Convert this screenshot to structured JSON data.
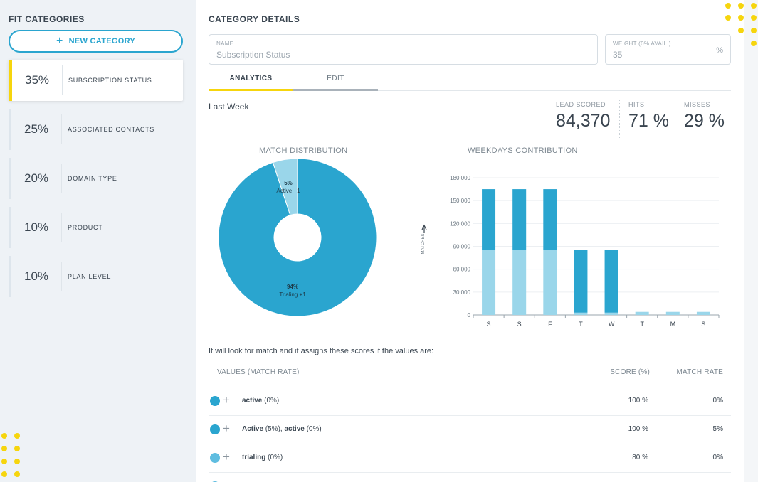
{
  "sidebar": {
    "title": "FIT CATEGORIES",
    "new_category_label": "NEW CATEGORY",
    "items": [
      {
        "pct": "35%",
        "label": "SUBSCRIPTION STATUS"
      },
      {
        "pct": "25%",
        "label": "ASSOCIATED CONTACTS"
      },
      {
        "pct": "20%",
        "label": "DOMAIN TYPE"
      },
      {
        "pct": "10%",
        "label": "PRODUCT"
      },
      {
        "pct": "10%",
        "label": "PLAN LEVEL"
      }
    ]
  },
  "main": {
    "title": "CATEGORY DETAILS",
    "name_field": {
      "label": "NAME",
      "value": "Subscription Status"
    },
    "weight_field": {
      "label": "WEIGHT (0% AVAIL.)",
      "value": "35",
      "unit": "%"
    },
    "tabs": [
      {
        "label": "ANALYTICS"
      },
      {
        "label": "EDIT"
      }
    ],
    "period": "Last Week",
    "stats": [
      {
        "label": "LEAD SCORED",
        "value": "84,370"
      },
      {
        "label": "HITS",
        "value": "71 %"
      },
      {
        "label": "MISSES",
        "value": "29 %"
      }
    ],
    "description": "It will look for match and it assigns these scores if the values are:",
    "table": {
      "headers": [
        "VALUES (MATCH RATE)",
        "SCORE (%)",
        "MATCH RATE"
      ],
      "rows": [
        {
          "name_bold": "active",
          "name_rest": " (0%)",
          "score": "100 %",
          "rate": "0%",
          "color": "#2aa5cf"
        },
        {
          "name_bold": "Active",
          "name_rest": " (5%), ",
          "name_bold2": "active",
          "name_rest2": " (0%)",
          "score": "100 %",
          "rate": "5%",
          "color": "#2aa5cf"
        },
        {
          "name_bold": "trialing",
          "name_rest": " (0%)",
          "score": "80 %",
          "rate": "0%",
          "color": "#5fbde0"
        }
      ]
    }
  },
  "colors": {
    "accent": "#2aa5cf",
    "light": "#9ad6ea",
    "highlight": "#f6d50d"
  },
  "chart_data": [
    {
      "type": "pie",
      "title": "MATCH DISTRIBUTION",
      "slices": [
        {
          "label": "Trialing +1",
          "value": 94,
          "pct_label": "94%",
          "color": "#2aa5cf"
        },
        {
          "label": "Active +1",
          "value": 5,
          "pct_label": "5%",
          "color": "#9ad6ea"
        }
      ]
    },
    {
      "type": "bar",
      "title": "WEEKDAYS CONTRIBUTION",
      "ylabel": "MATCHES",
      "categories": [
        "S",
        "S",
        "F",
        "T",
        "W",
        "T",
        "M",
        "S"
      ],
      "series": [
        {
          "values": [
            85000,
            85000,
            85000,
            3000,
            3000,
            4000,
            4000,
            4000
          ],
          "color": "#9ad6ea"
        },
        {
          "values": [
            80000,
            80000,
            80000,
            82000,
            82000,
            0,
            0,
            0
          ],
          "color": "#2aa5cf"
        }
      ],
      "ylim": [
        0,
        180000
      ],
      "yticks": [
        "0",
        "30,000",
        "60,000",
        "90,000",
        "120,000",
        "150,000",
        "180,000"
      ],
      "grid": true
    }
  ]
}
